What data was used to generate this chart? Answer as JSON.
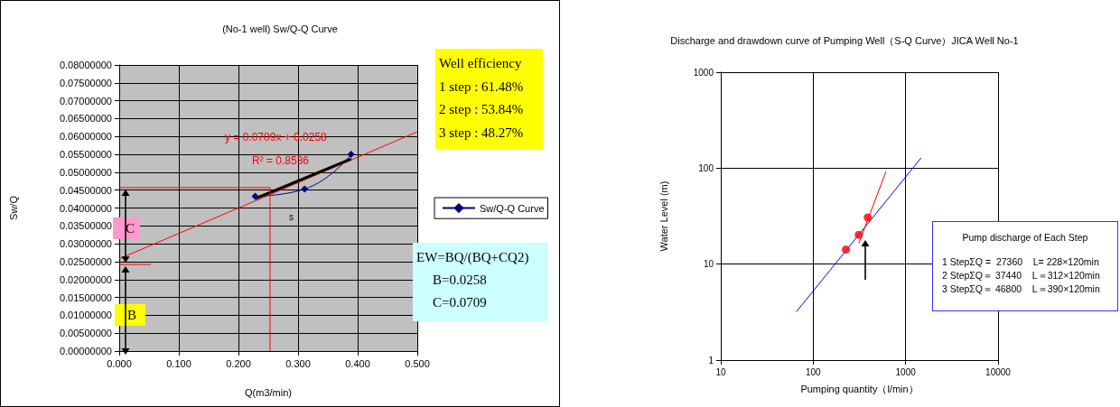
{
  "chart_data": [
    {
      "type": "line",
      "title": "(No-1 well) Sw/Q-Q Curve",
      "xlabel": "Q(m3/min)",
      "ylabel": "Sw/Q",
      "xlim": [
        0,
        0.5
      ],
      "xticks": [
        {
          "value": 0,
          "label": "0.000"
        },
        {
          "value": 0.1,
          "label": "0.100"
        },
        {
          "value": 0.2,
          "label": "0.200"
        },
        {
          "value": 0.3,
          "label": "0.300"
        },
        {
          "value": 0.4,
          "label": "0.400"
        },
        {
          "value": 0.5,
          "label": "0.500"
        }
      ],
      "ylim": [
        0,
        0.08
      ],
      "yticks": [
        {
          "value": 0,
          "label": "0.00000000"
        },
        {
          "value": 0.005,
          "label": "0.00500000"
        },
        {
          "value": 0.01,
          "label": "0.01000000"
        },
        {
          "value": 0.015,
          "label": "0.01500000"
        },
        {
          "value": 0.02,
          "label": "0.02000000"
        },
        {
          "value": 0.025,
          "label": "0.02500000"
        },
        {
          "value": 0.03,
          "label": "0.03000000"
        },
        {
          "value": 0.035,
          "label": "0.03500000"
        },
        {
          "value": 0.04,
          "label": "0.04000000"
        },
        {
          "value": 0.045,
          "label": "0.04500000"
        },
        {
          "value": 0.05,
          "label": "0.05000000"
        },
        {
          "value": 0.055,
          "label": "0.05500000"
        },
        {
          "value": 0.06,
          "label": "0.06000000"
        },
        {
          "value": 0.065,
          "label": "0.06500000"
        },
        {
          "value": 0.07,
          "label": "0.07000000"
        },
        {
          "value": 0.075,
          "label": "0.07500000"
        },
        {
          "value": 0.08,
          "label": "0.08000000"
        }
      ],
      "grid": true,
      "legend": "right",
      "marker": "diamond",
      "series": [
        {
          "name": "Sw/Q-Q Curve",
          "color": "#000080",
          "x": [
            0.228,
            0.311,
            0.389
          ],
          "values": [
            0.0433,
            0.0453,
            0.055
          ]
        },
        {
          "color": "#ff0000",
          "marker": "none",
          "x": [
            0,
            0.5
          ],
          "values": [
            0.0258,
            0.0613
          ]
        },
        {
          "color": "#000000",
          "marker": "none",
          "x": [
            0.228,
            0.389
          ],
          "values": [
            0.0426,
            0.0537
          ]
        },
        {
          "color": "#ff0000",
          "marker": "none",
          "x": [
            0,
            0.253
          ],
          "values": [
            0.0457,
            0.0457
          ]
        },
        {
          "color": "#ff0000",
          "marker": "none",
          "x": [
            0.253,
            0.253
          ],
          "values": [
            0.0457,
            0
          ]
        },
        {
          "color": "#ff0000",
          "marker": "none",
          "x": [
            0,
            0.053
          ],
          "values": [
            0.0242,
            0.0242
          ]
        }
      ],
      "annotations": [
        "y = 0.0709x + 0.0258",
        "R² = 0.8536",
        "Well efficiency",
        "1 step : 61.48%",
        "2 step : 53.84%",
        "3 step : 48.27%",
        "EW=BQ/(BQ+CQ2)",
        "B=0.0258",
        "C=0.0709",
        "C",
        "B",
        "s"
      ]
    },
    {
      "type": "scatter",
      "title": "Discharge and drawdown curve of Pumping Well（S-Q Curve）JICA Well No-1",
      "xlabel": "Pumping quantity（l/min）",
      "ylabel": "Water Level (m)",
      "log": "xy",
      "xlim": [
        10,
        10000
      ],
      "xticks": [
        10,
        100,
        1000,
        10000
      ],
      "ylim": [
        1,
        1000
      ],
      "yticks": [
        1,
        10,
        100,
        1000
      ],
      "grid": true,
      "legend": false,
      "marker": "circle",
      "series": [
        {
          "color": "#ff0000",
          "x": [
            226,
            311,
            389
          ],
          "values": [
            14.2,
            20.2,
            30.6
          ]
        },
        {
          "type": "line",
          "color": "#0000ff",
          "marker": "none",
          "x": [
            65.6,
            1470
          ],
          "values": [
            3.18,
            128
          ]
        },
        {
          "type": "line",
          "color": "#ff0000",
          "marker": "none",
          "x": [
            312,
            615
          ],
          "values": [
            16.5,
            93
          ]
        }
      ],
      "annotations": [
        "Pump discharge of Each Step",
        "1 StepΣQ =  27360    L= 228×120min",
        "2 StepΣQ＝ 37440    L＝312×120min",
        "3 StepΣQ＝ 46800    L＝390×120min"
      ]
    }
  ]
}
